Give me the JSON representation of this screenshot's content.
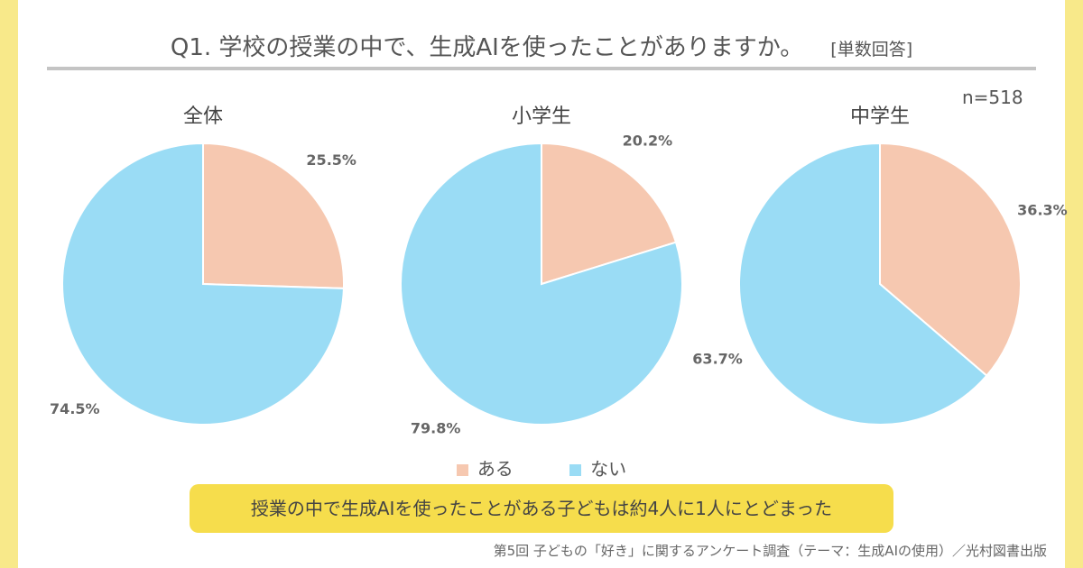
{
  "title": "Q1. 学校の授業の中で、生成AIを使ったことがありますか。",
  "title_note": "[単数回答]",
  "sample": "n=518",
  "colors": {
    "aru": "#f6c8b0",
    "nai": "#9adcf5",
    "border": "#f8e98a",
    "summary_bg": "#f6dd4c"
  },
  "chart_data": [
    {
      "type": "pie",
      "title": "全体",
      "categories": [
        "ある",
        "ない"
      ],
      "values": [
        25.5,
        74.5
      ],
      "labels": [
        "25.5%",
        "74.5%"
      ]
    },
    {
      "type": "pie",
      "title": "小学生",
      "categories": [
        "ある",
        "ない"
      ],
      "values": [
        20.2,
        79.8
      ],
      "labels": [
        "20.2%",
        "79.8%"
      ]
    },
    {
      "type": "pie",
      "title": "中学生",
      "categories": [
        "ある",
        "ない"
      ],
      "values": [
        36.3,
        63.7
      ],
      "labels": [
        "36.3%",
        "63.7%"
      ]
    }
  ],
  "legend": [
    {
      "label": "ある"
    },
    {
      "label": "ない"
    }
  ],
  "summary": "授業の中で生成AIを使ったことがある子どもは約4人に1人にとどまった",
  "source": "第5回 子どもの「好き」に関するアンケート調査（テーマ：生成AIの使用）／光村図書出版"
}
